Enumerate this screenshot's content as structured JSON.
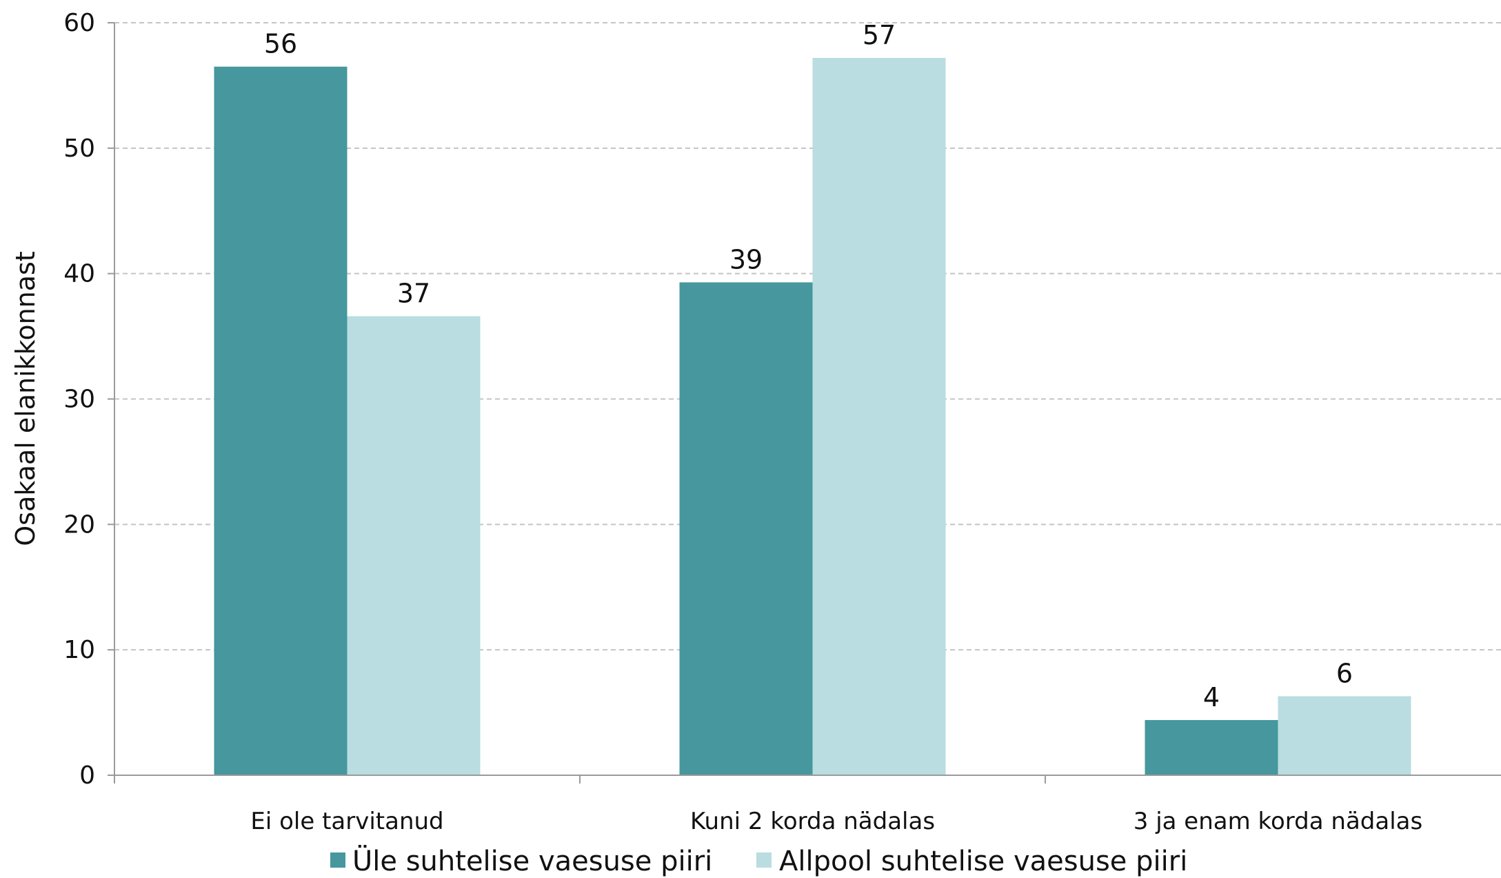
{
  "chart_data": {
    "type": "bar",
    "title": "",
    "xlabel": "",
    "ylabel": "Osakaal elanikkonnast",
    "ylim": [
      0,
      60
    ],
    "yticks": [
      0,
      10,
      20,
      30,
      40,
      50,
      60
    ],
    "grid": true,
    "legend_position": "bottom",
    "categories": [
      "Ei ole tarvitanud",
      "Kuni 2 korda nädalas",
      "3 ja enam korda nädalas"
    ],
    "series": [
      {
        "name": "Üle suhtelise vaesuse piiri",
        "color": "#46979e",
        "values": [
          56.5,
          39.3,
          4.4
        ],
        "labels": [
          "56",
          "39",
          "4"
        ]
      },
      {
        "name": "Allpool suhtelise vaesuse piiri",
        "color": "#b9dde0",
        "values": [
          36.6,
          57.2,
          6.3
        ],
        "labels": [
          "37",
          "57",
          "6"
        ]
      }
    ]
  }
}
